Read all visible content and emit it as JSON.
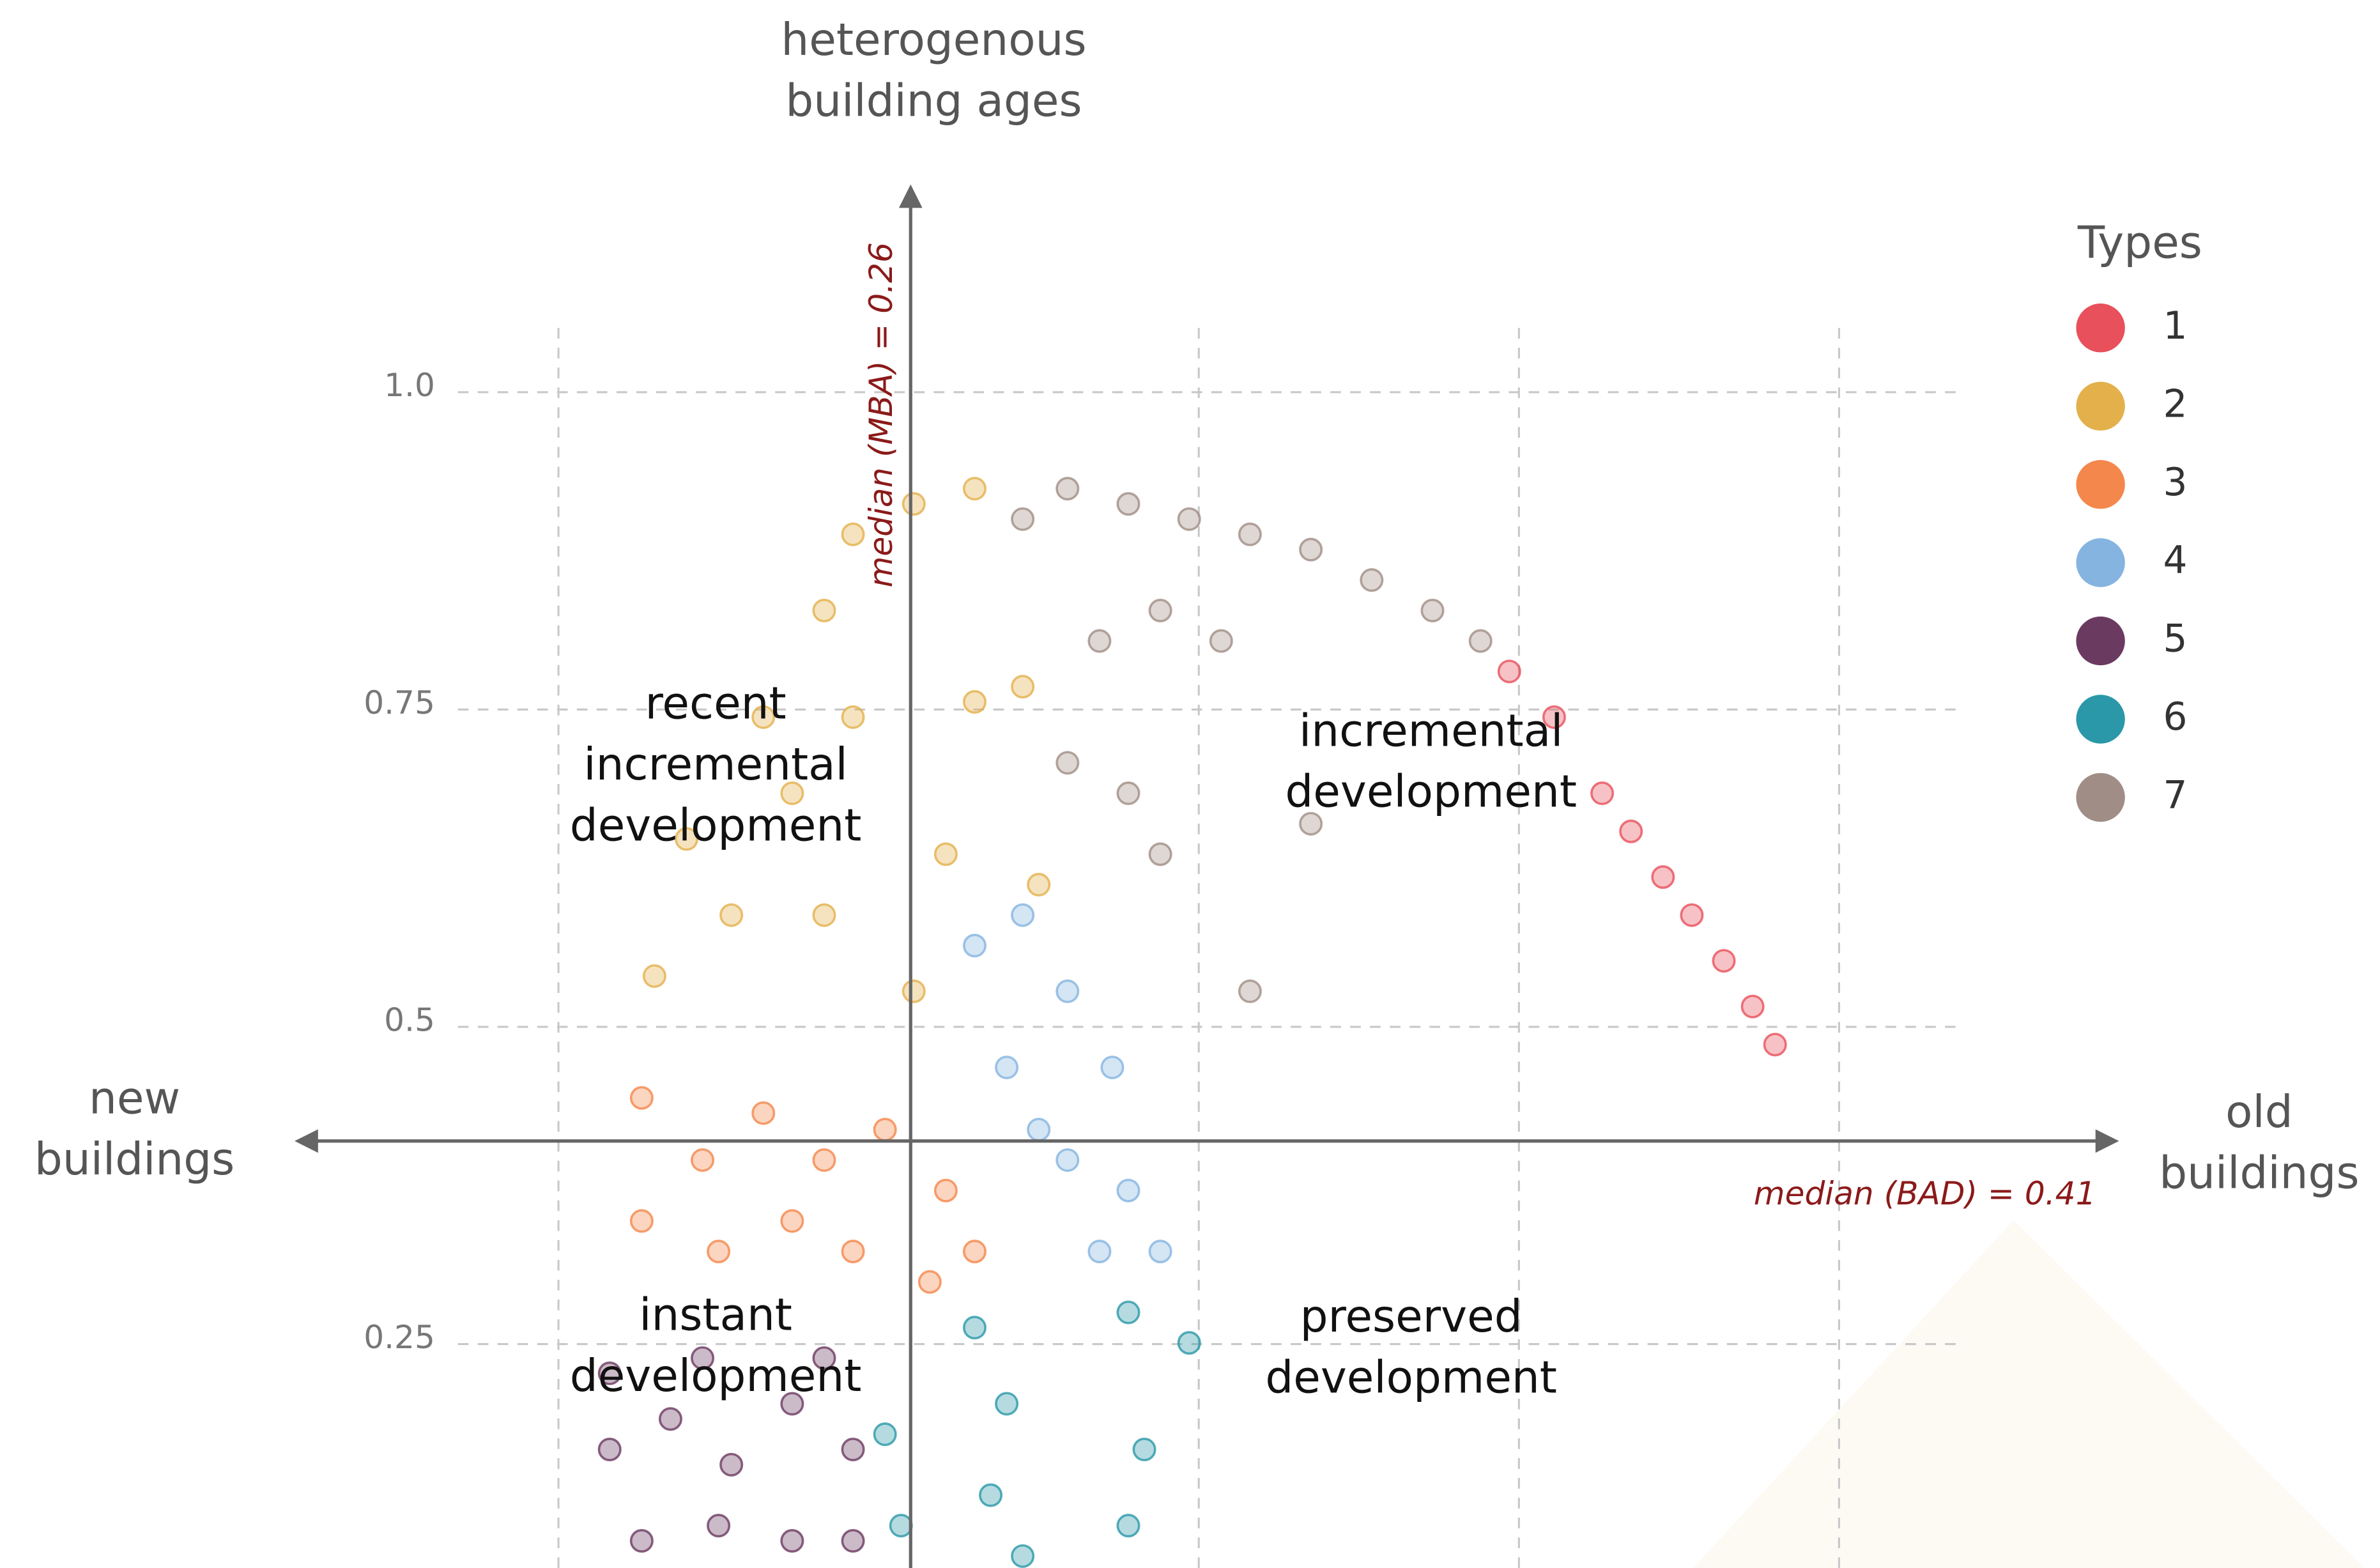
{
  "chart_data": {
    "type": "scatter",
    "y_axis_label": [
      "heterogenous",
      "building ages"
    ],
    "x_axis_label_left": [
      "new",
      "buildings"
    ],
    "x_axis_label_right": [
      "old",
      "buildings"
    ],
    "xlim": [
      0.07,
      0.635
    ],
    "ylim": [
      0.07,
      1.16
    ],
    "yticks": [
      0.25,
      0.5,
      0.75,
      {
        "value": 1,
        "label": "1.0"
      }
    ],
    "xgrid": [
      0.15,
      0.35,
      0.45,
      0.55
    ],
    "grid": true,
    "x_median": {
      "value": 0.26,
      "label": "median (MBA) = 0.26"
    },
    "y_median": {
      "value": 0.41,
      "label": "median (BAD) = 0.41"
    },
    "annotations": [
      [
        "recent",
        "incremental",
        "development"
      ],
      [
        "incremental",
        "development"
      ],
      [
        "instant",
        "development"
      ],
      [
        "preserved",
        "development"
      ]
    ],
    "legend_title": "Types",
    "legend": "upper right",
    "series": [
      {
        "name": "1",
        "color": "#e8505b",
        "x": [
          0.447,
          0.461,
          0.476,
          0.485,
          0.495,
          0.504,
          0.514,
          0.523,
          0.53
        ],
        "values": [
          0.78,
          0.744,
          0.684,
          0.654,
          0.618,
          0.588,
          0.552,
          0.516,
          0.486
        ]
      },
      {
        "name": "2",
        "color": "#e3b04b",
        "x": [
          0.233,
          0.242,
          0.261,
          0.28,
          0.19,
          0.214,
          0.242,
          0.28,
          0.295,
          0.18,
          0.204,
          0.233,
          0.271,
          0.3,
          0.261,
          0.223
        ],
        "values": [
          0.828,
          0.888,
          0.912,
          0.924,
          0.648,
          0.744,
          0.744,
          0.756,
          0.768,
          0.54,
          0.588,
          0.588,
          0.636,
          0.612,
          0.528,
          0.684
        ]
      },
      {
        "name": "3",
        "color": "#f4874b",
        "x": [
          0.176,
          0.195,
          0.214,
          0.233,
          0.252,
          0.271,
          0.28,
          0.176,
          0.2,
          0.223,
          0.242,
          0.266
        ],
        "values": [
          0.444,
          0.395,
          0.432,
          0.395,
          0.419,
          0.371,
          0.323,
          0.347,
          0.323,
          0.347,
          0.323,
          0.299
        ]
      },
      {
        "name": "4",
        "color": "#85b4e0",
        "x": [
          0.28,
          0.295,
          0.309,
          0.323,
          0.29,
          0.309,
          0.328,
          0.338,
          0.319,
          0.3
        ],
        "values": [
          0.564,
          0.588,
          0.528,
          0.468,
          0.468,
          0.395,
          0.371,
          0.323,
          0.323,
          0.419
        ]
      },
      {
        "name": "5",
        "color": "#6b3a60",
        "x": [
          0.166,
          0.185,
          0.204,
          0.223,
          0.242,
          0.176,
          0.2,
          0.223,
          0.242,
          0.166,
          0.195,
          0.233
        ],
        "values": [
          0.167,
          0.191,
          0.155,
          0.203,
          0.167,
          0.095,
          0.107,
          0.095,
          0.095,
          0.227,
          0.239,
          0.239
        ]
      },
      {
        "name": "6",
        "color": "#2a98a8",
        "x": [
          0.252,
          0.257,
          0.28,
          0.29,
          0.285,
          0.295,
          0.328,
          0.347,
          0.333,
          0.328
        ],
        "values": [
          0.179,
          0.107,
          0.263,
          0.203,
          0.131,
          0.083,
          0.275,
          0.251,
          0.167,
          0.107
        ]
      },
      {
        "name": "7",
        "color": "#a08d85",
        "x": [
          0.295,
          0.309,
          0.328,
          0.347,
          0.366,
          0.385,
          0.404,
          0.423,
          0.438,
          0.319,
          0.338,
          0.357,
          0.309,
          0.328,
          0.385,
          0.366,
          0.338
        ],
        "values": [
          0.9,
          0.924,
          0.912,
          0.9,
          0.888,
          0.876,
          0.852,
          0.828,
          0.804,
          0.804,
          0.828,
          0.804,
          0.708,
          0.684,
          0.66,
          0.528,
          0.636
        ]
      }
    ]
  }
}
